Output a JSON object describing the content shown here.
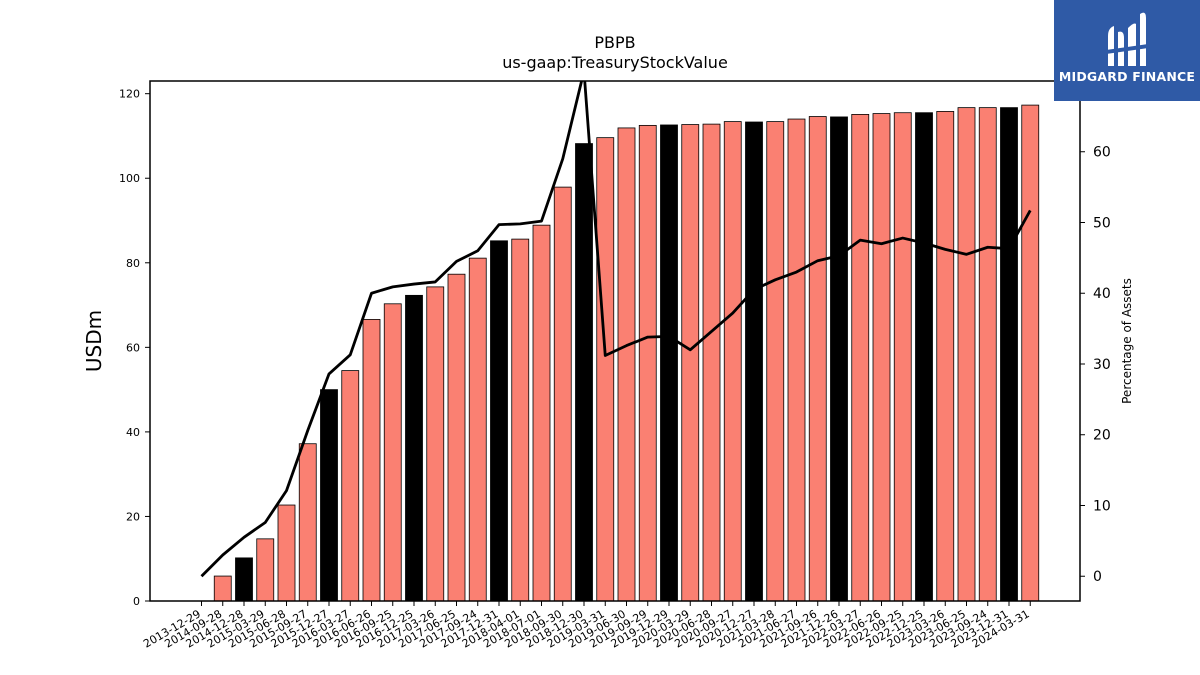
{
  "chart_data": {
    "type": "bar",
    "title": "PBPB",
    "subtitle": "us-gaap:TreasuryStockValue",
    "ylabel": "USDm",
    "y2label": "Percentage of Assets",
    "ylim": [
      0,
      123
    ],
    "y2lim": [
      -3.5,
      70
    ],
    "yticks": [
      0,
      20,
      40,
      60,
      80,
      100,
      120
    ],
    "y2ticks": [
      0,
      10,
      20,
      30,
      40,
      50,
      60
    ],
    "categories": [
      "2013-12-29",
      "2014-09-28",
      "2014-12-28",
      "2015-03-29",
      "2015-06-28",
      "2015-09-27",
      "2015-12-27",
      "2016-03-27",
      "2016-06-26",
      "2016-09-25",
      "2016-12-25",
      "2017-03-26",
      "2017-06-25",
      "2017-09-24",
      "2017-12-31",
      "2018-04-01",
      "2018-07-01",
      "2018-09-30",
      "2018-12-30",
      "2019-03-31",
      "2019-06-30",
      "2019-09-29",
      "2019-12-29",
      "2020-03-29",
      "2020-06-28",
      "2020-09-27",
      "2020-12-27",
      "2021-03-28",
      "2021-06-27",
      "2021-09-26",
      "2021-12-26",
      "2022-03-27",
      "2022-06-26",
      "2022-09-25",
      "2022-12-25",
      "2023-03-26",
      "2023-06-25",
      "2023-09-24",
      "2023-12-31",
      "2024-03-31"
    ],
    "values": [
      0,
      5.9,
      10.2,
      14.7,
      22.7,
      37.2,
      50.0,
      54.5,
      66.6,
      70.3,
      72.3,
      74.3,
      77.3,
      81.1,
      85.2,
      85.6,
      88.9,
      97.9,
      108.2,
      109.6,
      111.9,
      112.5,
      112.6,
      112.7,
      112.8,
      113.4,
      113.3,
      113.4,
      114.0,
      114.6,
      114.5,
      115.1,
      115.3,
      115.5,
      115.5,
      115.8,
      116.7,
      116.7,
      116.7,
      117.3
    ],
    "bar_colors": [
      "#fa8072",
      "#fa8072",
      "#000000",
      "#fa8072",
      "#fa8072",
      "#fa8072",
      "#000000",
      "#fa8072",
      "#fa8072",
      "#fa8072",
      "#000000",
      "#fa8072",
      "#fa8072",
      "#fa8072",
      "#000000",
      "#fa8072",
      "#fa8072",
      "#fa8072",
      "#000000",
      "#fa8072",
      "#fa8072",
      "#fa8072",
      "#000000",
      "#fa8072",
      "#fa8072",
      "#fa8072",
      "#000000",
      "#fa8072",
      "#fa8072",
      "#fa8072",
      "#000000",
      "#fa8072",
      "#fa8072",
      "#fa8072",
      "#000000",
      "#fa8072",
      "#fa8072",
      "#fa8072",
      "#000000",
      "#fa8072"
    ],
    "line": [
      0,
      3.0,
      5.5,
      7.6,
      12.1,
      20.6,
      28.6,
      31.3,
      40.0,
      40.9,
      41.3,
      41.6,
      44.5,
      46.0,
      49.7,
      49.8,
      50.2,
      59.0,
      71.4,
      31.2,
      32.6,
      33.8,
      33.9,
      32.0,
      34.6,
      37.2,
      40.5,
      41.9,
      43.0,
      44.6,
      45.3,
      47.5,
      47.0,
      47.8,
      47.1,
      46.2,
      45.5,
      46.5,
      46.3,
      51.7
    ],
    "grid": false,
    "colors": {
      "bar": "#fa8072",
      "bar_highlight": "#000000",
      "line": "#000000"
    }
  },
  "logo": {
    "text": "MIDGARD FINANCE",
    "bg": "#2f5aa6"
  }
}
